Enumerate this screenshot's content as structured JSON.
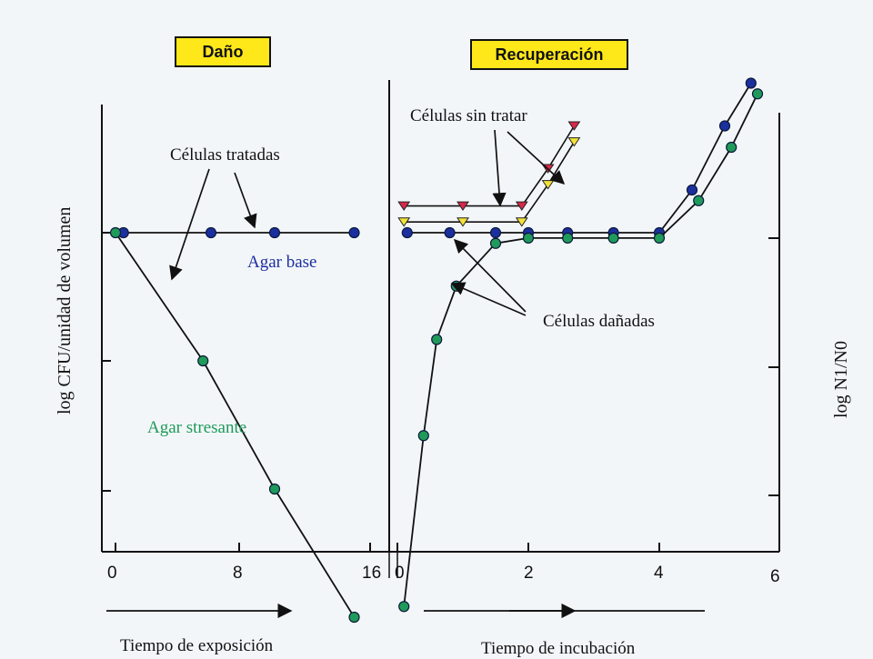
{
  "phases": {
    "damage": "Daño",
    "recovery": "Recuperación"
  },
  "labels": {
    "treated_cells": "Células tratadas",
    "untreated_cells": "Células sin tratar",
    "damaged_cells": "Células dañadas",
    "agar_base": "Agar base",
    "agar_stress": "Agar stresante"
  },
  "axes": {
    "y_left": "log CFU/unidad de volumen",
    "y_right": "log N1/N0",
    "x_exposure": "Tiempo de exposición",
    "x_incubation": "Tiempo de incubación",
    "exposure_ticks": [
      "0",
      "8",
      "16"
    ],
    "incubation_ticks": [
      "0",
      "2",
      "4",
      "6"
    ]
  },
  "colors": {
    "agar_base": "#1c2f9e",
    "agar_stress": "#1f9a5a",
    "untreated_red": "#d6284a",
    "untreated_yellow": "#f2e23a"
  },
  "chart_data": {
    "type": "line",
    "panels": [
      {
        "name": "Daño",
        "xlabel": "Tiempo de exposición",
        "xlim": [
          0,
          16
        ],
        "series": [
          {
            "name": "Agar base",
            "x": [
              0.5,
              6,
              10,
              15
            ],
            "y": [
              7.3,
              7.3,
              7.3,
              7.3
            ]
          },
          {
            "name": "Agar stresante",
            "x": [
              0,
              5.5,
              10,
              15
            ],
            "y": [
              7.3,
              6.1,
              4.9,
              3.7
            ]
          }
        ]
      },
      {
        "name": "Recuperación",
        "xlabel": "Tiempo de incubación",
        "xlim": [
          0,
          6
        ],
        "series": [
          {
            "name": "Agar base",
            "x": [
              0.15,
              0.8,
              1.5,
              2.0,
              2.6,
              3.3,
              4.0,
              4.5,
              5.0,
              5.4
            ],
            "y": [
              7.3,
              7.3,
              7.3,
              7.3,
              7.3,
              7.3,
              7.3,
              7.7,
              8.3,
              8.7
            ]
          },
          {
            "name": "Agar stresante",
            "x": [
              0.1,
              0.4,
              0.6,
              0.9,
              1.5,
              2.0,
              2.6,
              3.3,
              4.0,
              4.6,
              5.1,
              5.5
            ],
            "y": [
              3.8,
              5.4,
              6.3,
              6.8,
              7.2,
              7.25,
              7.25,
              7.25,
              7.25,
              7.6,
              8.1,
              8.6
            ]
          },
          {
            "name": "Células sin tratar (rojo)",
            "x": [
              0.1,
              1.0,
              1.9,
              2.3,
              2.7
            ],
            "y": [
              7.55,
              7.55,
              7.55,
              7.9,
              8.3
            ]
          },
          {
            "name": "Células sin tratar (amarillo)",
            "x": [
              0.1,
              1.0,
              1.9,
              2.3,
              2.7
            ],
            "y": [
              7.4,
              7.4,
              7.4,
              7.75,
              8.15
            ]
          }
        ]
      }
    ]
  }
}
